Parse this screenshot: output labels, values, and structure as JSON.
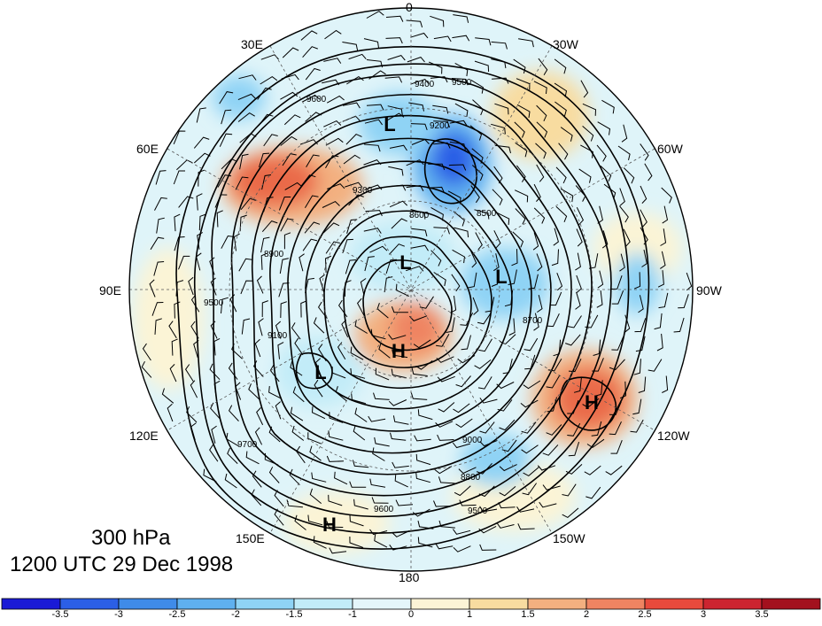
{
  "title": {
    "level": "300 hPa",
    "time": "1200 UTC 29 Dec 1998"
  },
  "longitude_labels": [
    "0",
    "30W",
    "60W",
    "90W",
    "120W",
    "150W",
    "180",
    "150E",
    "120E",
    "90E",
    "60E",
    "30E"
  ],
  "pressure_systems": [
    {
      "type": "L"
    },
    {
      "type": "L"
    },
    {
      "type": "L"
    },
    {
      "type": "L"
    },
    {
      "type": "H"
    },
    {
      "type": "H"
    },
    {
      "type": "H"
    }
  ],
  "contour_labels": [
    "9400",
    "9500",
    "9600",
    "9200",
    "9300",
    "8600",
    "8500",
    "8700",
    "8900",
    "9100",
    "9000",
    "8800",
    "9700",
    "9800"
  ],
  "colorbar": {
    "ticks": [
      "-3.5",
      "-3",
      "-2.5",
      "-2",
      "-1.5",
      "-1",
      "0",
      "1",
      "1.5",
      "2",
      "2.5",
      "3",
      "3.5"
    ],
    "colors": [
      "#1a1ad6",
      "#2b5fe6",
      "#3f8be8",
      "#5fb0ef",
      "#8fd3f5",
      "#c2ecf8",
      "#e4f6fa",
      "#fbf4d6",
      "#f8dca0",
      "#f3b080",
      "#ef8462",
      "#e84a3c",
      "#cc2430",
      "#a3111e"
    ]
  }
}
